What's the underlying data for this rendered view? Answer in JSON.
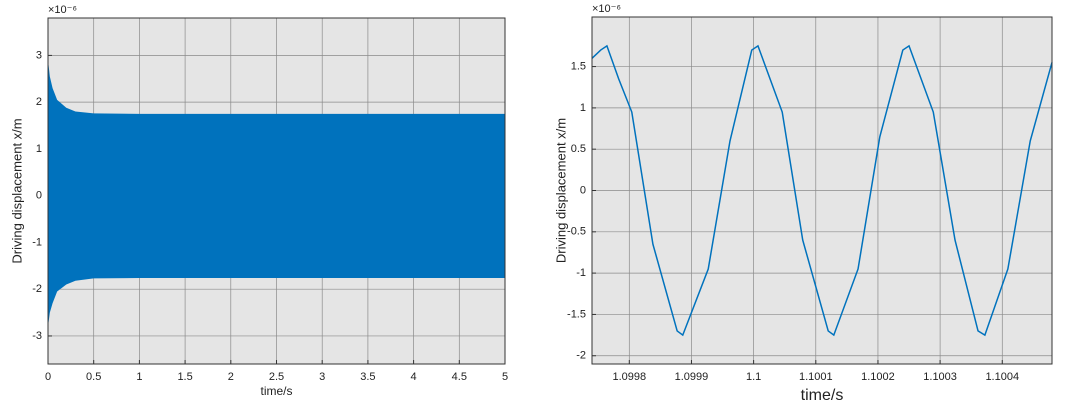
{
  "chart_data": [
    {
      "type": "area",
      "xlabel": "time/s",
      "ylabel": "Driving displacement x/m",
      "y_multiplier": "×10⁻⁶",
      "color": "#0072bd",
      "grid": true,
      "x": [
        0,
        0.02,
        0.05,
        0.1,
        0.2,
        0.3,
        0.5,
        1,
        5
      ],
      "upper": [
        2.9,
        2.55,
        2.3,
        2.05,
        1.88,
        1.8,
        1.76,
        1.75,
        1.75
      ],
      "lower": [
        -2.8,
        -2.5,
        -2.3,
        -2.05,
        -1.9,
        -1.82,
        -1.77,
        -1.76,
        -1.76
      ],
      "xlim": [
        0,
        5
      ],
      "xticks": [
        0,
        0.5,
        1,
        1.5,
        2,
        2.5,
        3,
        3.5,
        4,
        4.5,
        5
      ],
      "ylim": [
        -3.6,
        3.8
      ],
      "yticks": [
        -3,
        -2,
        -1,
        0,
        1,
        2,
        3
      ]
    },
    {
      "type": "line",
      "xlabel": "time/s",
      "ylabel": "Driving displacement x/m",
      "y_multiplier": "×10⁻⁶",
      "color": "#0072bd",
      "grid": true,
      "x": [
        1.09974,
        1.099754,
        1.099764,
        1.099783,
        1.099804,
        1.099838,
        1.099877,
        1.099886,
        1.099927,
        1.099962,
        1.099997,
        1.100007,
        1.100046,
        1.100079,
        1.10012,
        1.100129,
        1.100168,
        1.100203,
        1.10024,
        1.10025,
        1.100289,
        1.100324,
        1.100361,
        1.100372,
        1.100409,
        1.100445,
        1.10048
      ],
      "values": [
        1.6,
        1.7,
        1.75,
        1.35,
        0.95,
        -0.65,
        -1.7,
        -1.75,
        -0.95,
        0.6,
        1.7,
        1.75,
        0.95,
        -0.6,
        -1.7,
        -1.75,
        -0.95,
        0.65,
        1.7,
        1.75,
        0.95,
        -0.6,
        -1.7,
        -1.75,
        -0.95,
        0.6,
        1.55
      ],
      "xlim": [
        1.09974,
        1.10048
      ],
      "xticks": [
        1.0998,
        1.0999,
        1.1,
        1.1001,
        1.1002,
        1.1003,
        1.1004
      ],
      "ylim": [
        -2.1,
        2.1
      ],
      "yticks": [
        -2,
        -1.5,
        -1,
        -0.5,
        0,
        0.5,
        1,
        1.5
      ]
    }
  ]
}
